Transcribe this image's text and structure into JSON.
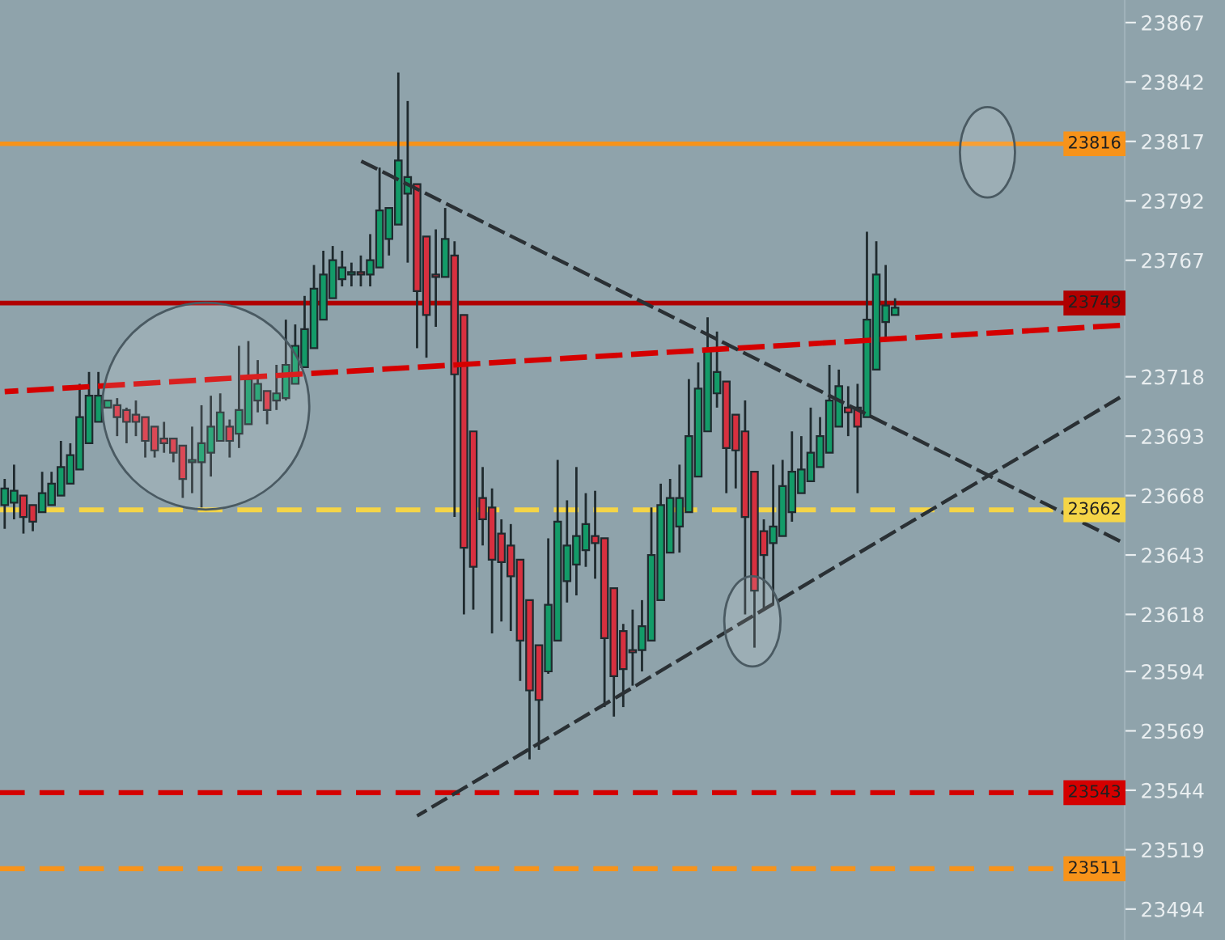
{
  "chart_data": {
    "type": "candlestick",
    "categories": [
      null,
      null,
      null,
      null,
      null,
      null,
      null,
      null,
      null,
      null,
      null,
      null,
      null,
      null,
      null,
      null,
      null,
      null,
      null,
      null,
      null,
      null,
      null,
      null,
      null,
      null,
      null,
      null,
      null,
      null,
      null,
      null,
      null,
      null,
      null,
      null,
      null,
      null,
      null,
      null,
      null,
      null,
      null,
      null,
      null,
      null,
      null,
      null,
      null,
      null,
      null,
      null,
      null,
      null,
      null,
      null,
      null,
      null,
      null,
      null,
      null,
      null,
      null,
      null,
      null,
      null,
      null,
      null,
      null,
      null,
      null,
      null,
      null,
      null,
      null,
      null,
      null,
      null,
      null,
      null,
      null,
      null,
      null,
      null,
      null,
      null,
      null,
      null,
      null,
      null,
      null,
      null,
      null,
      null,
      null,
      null,
      null,
      null,
      null,
      null,
      null,
      null,
      null,
      null,
      null,
      null,
      null,
      null,
      null,
      null,
      null,
      null,
      null,
      null,
      null,
      null,
      null,
      null,
      null,
      null
    ],
    "ohlc": [
      [
        23664,
        23675,
        23654,
        23671
      ],
      [
        23665,
        23681,
        23658,
        23670
      ],
      [
        23668,
        23668,
        23652,
        23659
      ],
      [
        23664,
        23664,
        23653,
        23657
      ],
      [
        23661,
        23678,
        23661,
        23669
      ],
      [
        23664,
        23678,
        23664,
        23673
      ],
      [
        23668,
        23691,
        23668,
        23680
      ],
      [
        23673,
        23690,
        23673,
        23685
      ],
      [
        23679,
        23715,
        23679,
        23701
      ],
      [
        23690,
        23720,
        23690,
        23710
      ],
      [
        23699,
        23720,
        23699,
        23710
      ],
      [
        23705,
        23708,
        23705,
        23708
      ],
      [
        23706,
        23709,
        23693,
        23701
      ],
      [
        23704,
        23705,
        23690,
        23699
      ],
      [
        23702,
        23708,
        23693,
        23699
      ],
      [
        23701,
        23701,
        23684,
        23691
      ],
      [
        23697,
        23697,
        23684,
        23687
      ],
      [
        23692,
        23699,
        23686,
        23690
      ],
      [
        23692,
        23692,
        23682,
        23686
      ],
      [
        23689,
        23689,
        23667,
        23675
      ],
      [
        23682,
        23697,
        23669,
        23683
      ],
      [
        23682,
        23706,
        23663,
        23690
      ],
      [
        23686,
        23710,
        23676,
        23697
      ],
      [
        23691,
        23711,
        23691,
        23703
      ],
      [
        23697,
        23700,
        23684,
        23691
      ],
      [
        23694,
        23731,
        23688,
        23704
      ],
      [
        23698,
        23733,
        23698,
        23717
      ],
      [
        23708,
        23725,
        23703,
        23715
      ],
      [
        23712,
        23712,
        23698,
        23704
      ],
      [
        23708,
        23723,
        23704,
        23711
      ],
      [
        23709,
        23742,
        23708,
        23723
      ],
      [
        23715,
        23740,
        23715,
        23731
      ],
      [
        23722,
        23752,
        23722,
        23738
      ],
      [
        23730,
        23765,
        23730,
        23755
      ],
      [
        23742,
        23771,
        23742,
        23761
      ],
      [
        23751,
        23773,
        23751,
        23767
      ],
      [
        23759,
        23771,
        23756,
        23764
      ],
      [
        23761,
        23766,
        23756,
        23762
      ],
      [
        23762,
        23769,
        23756,
        23761
      ],
      [
        23761,
        23778,
        23756,
        23767
      ],
      [
        23764,
        23806,
        23764,
        23788
      ],
      [
        23776,
        23789,
        23769,
        23789
      ],
      [
        23782,
        23846,
        23782,
        23809
      ],
      [
        23795,
        23834,
        23766,
        23802
      ],
      [
        23799,
        23799,
        23730,
        23754
      ],
      [
        23777,
        23777,
        23726,
        23744
      ],
      [
        23761,
        23780,
        23739,
        23760
      ],
      [
        23760,
        23789,
        23760,
        23776
      ],
      [
        23769,
        23775,
        23659,
        23719
      ],
      [
        23744,
        23744,
        23618,
        23646
      ],
      [
        23695,
        23695,
        23620,
        23638
      ],
      [
        23667,
        23680,
        23647,
        23658
      ],
      [
        23663,
        23671,
        23610,
        23641
      ],
      [
        23652,
        23658,
        23615,
        23640
      ],
      [
        23647,
        23656,
        23611,
        23634
      ],
      [
        23641,
        23641,
        23590,
        23607
      ],
      [
        23624,
        23624,
        23557,
        23586
      ],
      [
        23605,
        23605,
        23561,
        23582
      ],
      [
        23594,
        23650,
        23593,
        23622
      ],
      [
        23607,
        23683,
        23607,
        23657
      ],
      [
        23632,
        23666,
        23623,
        23647
      ],
      [
        23639,
        23680,
        23626,
        23651
      ],
      [
        23645,
        23669,
        23638,
        23656
      ],
      [
        23651,
        23670,
        23633,
        23648
      ],
      [
        23650,
        23650,
        23579,
        23608
      ],
      [
        23629,
        23629,
        23575,
        23592
      ],
      [
        23611,
        23614,
        23579,
        23595
      ],
      [
        23603,
        23620,
        23588,
        23602
      ],
      [
        23603,
        23624,
        23594,
        23613
      ],
      [
        23607,
        23663,
        23607,
        23643
      ],
      [
        23624,
        23673,
        23624,
        23664
      ],
      [
        23644,
        23675,
        23644,
        23667
      ],
      [
        23655,
        23681,
        23644,
        23667
      ],
      [
        23661,
        23717,
        23661,
        23693
      ],
      [
        23676,
        23724,
        23676,
        23713
      ],
      [
        23695,
        23743,
        23695,
        23729
      ],
      [
        23711,
        23737,
        23705,
        23720
      ],
      [
        23716,
        23716,
        23669,
        23688
      ],
      [
        23702,
        23702,
        23671,
        23687
      ],
      [
        23695,
        23708,
        23618,
        23659
      ],
      [
        23678,
        23678,
        23604,
        23628
      ],
      [
        23653,
        23658,
        23620,
        23643
      ],
      [
        23648,
        23681,
        23622,
        23655
      ],
      [
        23651,
        23683,
        23651,
        23672
      ],
      [
        23661,
        23695,
        23657,
        23678
      ],
      [
        23669,
        23693,
        23669,
        23679
      ],
      [
        23674,
        23705,
        23674,
        23686
      ],
      [
        23680,
        23701,
        23680,
        23693
      ],
      [
        23686,
        23723,
        23686,
        23708
      ],
      [
        23697,
        23721,
        23697,
        23714
      ],
      [
        23705,
        23714,
        23693,
        23703
      ],
      [
        23705,
        23715,
        23669,
        23697
      ],
      [
        23701,
        23779,
        23701,
        23742
      ],
      [
        23721,
        23775,
        23721,
        23761
      ],
      [
        23741,
        23765,
        23733,
        23748
      ],
      [
        23744,
        23751,
        23744,
        23747
      ],
      null,
      null,
      null,
      null,
      null,
      null,
      null,
      null,
      null,
      null,
      null,
      null,
      null,
      null,
      null,
      null,
      null,
      null,
      null,
      null,
      null,
      null,
      null,
      null
    ],
    "colors": [
      "#139b68",
      "#139b68",
      "#d7303f",
      "#d7303f",
      "#139b68",
      "#139b68",
      "#139b68",
      "#139b68",
      "#139b68",
      "#139b68",
      "#139b68",
      "#139b68",
      "#d7303f",
      "#d7303f",
      "#d7303f",
      "#d7303f",
      "#d7303f",
      "#d7303f",
      "#d7303f",
      "#d7303f",
      "#139b68",
      "#139b68",
      "#139b68",
      "#139b68",
      "#d7303f",
      "#139b68",
      "#139b68",
      "#139b68",
      "#d7303f",
      "#139b68",
      "#139b68",
      "#139b68",
      "#139b68",
      "#139b68",
      "#139b68",
      "#139b68",
      "#139b68",
      "#139b68",
      "#d7303f",
      "#139b68",
      "#139b68",
      "#139b68",
      "#139b68",
      "#139b68",
      "#d7303f",
      "#d7303f",
      "#d7303f",
      "#139b68",
      "#d7303f",
      "#d7303f",
      "#d7303f",
      "#d7303f",
      "#d7303f",
      "#d7303f",
      "#d7303f",
      "#d7303f",
      "#d7303f",
      "#d7303f",
      "#139b68",
      "#139b68",
      "#139b68",
      "#139b68",
      "#139b68",
      "#d7303f",
      "#d7303f",
      "#d7303f",
      "#d7303f",
      "#d7303f",
      "#139b68",
      "#139b68",
      "#139b68",
      "#139b68",
      "#139b68",
      "#139b68",
      "#139b68",
      "#139b68",
      "#139b68",
      "#d7303f",
      "#d7303f",
      "#d7303f",
      "#d7303f",
      "#d7303f",
      "#139b68",
      "#139b68",
      "#139b68",
      "#139b68",
      "#139b68",
      "#139b68",
      "#139b68",
      "#139b68",
      "#d7303f",
      "#d7303f",
      "#139b68",
      "#139b68",
      "#139b68",
      "#139b68",
      null,
      null,
      null,
      null,
      null,
      null,
      null,
      null,
      null,
      null,
      null,
      null,
      null,
      null,
      null,
      null,
      null,
      null,
      null,
      null,
      null,
      null,
      null,
      null
    ],
    "series": [
      {
        "type": "line",
        "color": "#d40000",
        "line_style": "dashed",
        "values": [
          23711.7,
          null,
          null,
          null,
          null,
          null,
          null,
          null,
          null,
          null,
          null,
          null,
          null,
          null,
          null,
          null,
          null,
          null,
          null,
          null,
          null,
          null,
          null,
          null,
          null,
          null,
          null,
          null,
          null,
          null,
          null,
          null,
          null,
          null,
          null,
          null,
          null,
          null,
          null,
          null,
          null,
          null,
          null,
          null,
          null,
          null,
          null,
          null,
          null,
          null,
          null,
          null,
          null,
          null,
          null,
          null,
          null,
          null,
          null,
          null,
          null,
          null,
          null,
          null,
          null,
          null,
          null,
          null,
          null,
          null,
          null,
          null,
          null,
          null,
          null,
          null,
          null,
          null,
          null,
          null,
          null,
          null,
          null,
          null,
          null,
          null,
          null,
          null,
          null,
          null,
          null,
          null,
          null,
          null,
          null,
          null,
          null,
          null,
          null,
          null,
          null,
          null,
          null,
          null,
          null,
          null,
          null,
          null,
          null,
          null,
          null,
          null,
          null,
          null,
          null,
          null,
          null,
          null,
          null,
          23739.6
        ]
      },
      {
        "type": "line",
        "color": "#2a3034",
        "line_style": "dashed",
        "values": [
          null,
          null,
          null,
          null,
          null,
          null,
          null,
          null,
          null,
          null,
          null,
          null,
          null,
          null,
          null,
          null,
          null,
          null,
          null,
          null,
          null,
          null,
          null,
          null,
          null,
          null,
          null,
          null,
          null,
          null,
          null,
          null,
          null,
          null,
          null,
          null,
          null,
          null,
          23808.8,
          null,
          null,
          null,
          null,
          null,
          null,
          null,
          null,
          null,
          null,
          null,
          null,
          null,
          null,
          null,
          null,
          null,
          null,
          null,
          null,
          null,
          null,
          null,
          null,
          null,
          null,
          null,
          null,
          null,
          null,
          null,
          null,
          null,
          null,
          null,
          null,
          null,
          null,
          null,
          null,
          null,
          null,
          null,
          null,
          null,
          null,
          null,
          null,
          null,
          null,
          null,
          null,
          null,
          null,
          null,
          null,
          null,
          null,
          null,
          null,
          null,
          null,
          null,
          null,
          null,
          null,
          null,
          null,
          null,
          null,
          null,
          null,
          null,
          null,
          null,
          null,
          null,
          null,
          null,
          null,
          23648.8
        ]
      },
      {
        "type": "line",
        "color": "#2a3034",
        "line_style": "dashed",
        "values": [
          null,
          null,
          null,
          null,
          null,
          null,
          null,
          null,
          null,
          null,
          null,
          null,
          null,
          null,
          null,
          null,
          null,
          null,
          null,
          null,
          null,
          null,
          null,
          null,
          null,
          null,
          null,
          null,
          null,
          null,
          null,
          null,
          null,
          null,
          null,
          null,
          null,
          null,
          null,
          null,
          null,
          null,
          null,
          null,
          23533.2,
          null,
          null,
          null,
          null,
          null,
          null,
          null,
          null,
          null,
          null,
          null,
          null,
          null,
          null,
          null,
          null,
          null,
          null,
          null,
          null,
          null,
          null,
          null,
          null,
          null,
          null,
          null,
          null,
          null,
          null,
          null,
          null,
          null,
          null,
          null,
          null,
          null,
          null,
          null,
          null,
          null,
          null,
          null,
          null,
          null,
          null,
          null,
          null,
          null,
          null,
          null,
          null,
          null,
          null,
          null,
          null,
          null,
          null,
          null,
          null,
          null,
          null,
          null,
          null,
          null,
          null,
          null,
          null,
          null,
          null,
          null,
          null,
          null,
          null,
          23709.3
        ]
      }
    ],
    "ref_lines": [
      {
        "axis": "y",
        "value": 23816,
        "label": "23816",
        "color": "#f7931a",
        "line_style": "solid"
      },
      {
        "axis": "y",
        "value": 23749,
        "label": "23749",
        "color": "#b00000",
        "line_style": "solid"
      },
      {
        "axis": "y",
        "value": 23662,
        "label": "23662",
        "color": "#f5d547",
        "line_style": "dashed"
      },
      {
        "axis": "y",
        "value": 23543,
        "label": "23543",
        "color": "#d40000",
        "line_style": "dashed"
      },
      {
        "axis": "y",
        "value": 23511,
        "label": "23511",
        "color": "#f7931a",
        "line_style": "dashed"
      }
    ],
    "ylim": [
      23481,
      23876.5
    ],
    "yticks": [
      23867,
      23842,
      23817,
      23792,
      23767,
      23718,
      23693,
      23668,
      23643,
      23618,
      23594,
      23569,
      23544,
      23519,
      23494
    ],
    "tick_labels": "y",
    "grid": false
  }
}
